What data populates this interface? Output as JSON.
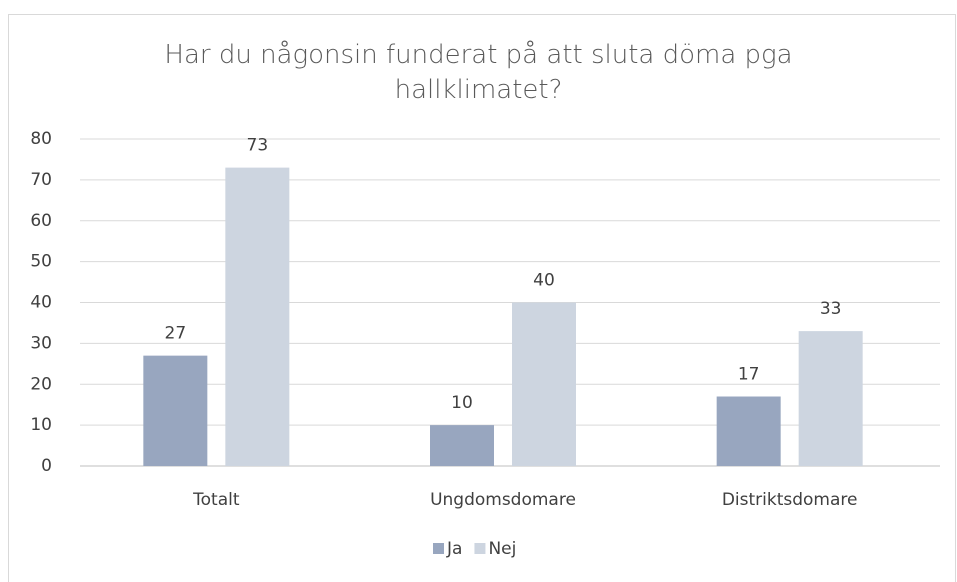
{
  "chart_data": {
    "type": "bar",
    "title": "Har du någonsin funderat på att sluta döma pga hallklimatet?",
    "categories": [
      "Totalt",
      "Ungdomsdomare",
      "Distriktsdomare"
    ],
    "series": [
      {
        "name": "Ja",
        "color": "#98a6bf",
        "values": [
          27,
          10,
          17
        ]
      },
      {
        "name": "Nej",
        "color": "#cdd5e0",
        "values": [
          73,
          40,
          33
        ]
      }
    ],
    "ylim": [
      0,
      80
    ],
    "yticks": [
      0,
      10,
      20,
      30,
      40,
      50,
      60,
      70,
      80
    ],
    "grid": true,
    "legend": "bottom"
  }
}
